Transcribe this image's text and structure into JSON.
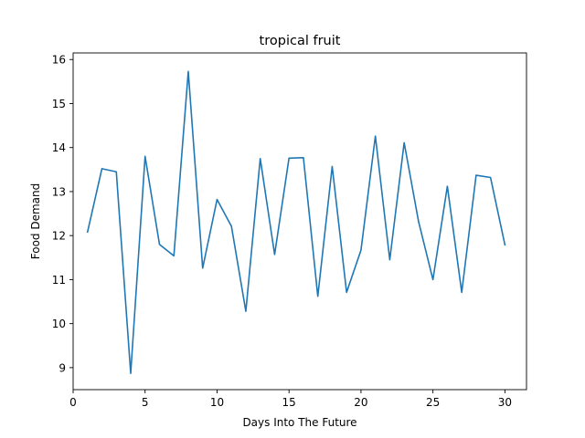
{
  "chart_data": {
    "type": "line",
    "title": "tropical fruit",
    "xlabel": "Days Into The Future",
    "ylabel": "Food Demand",
    "xlim": [
      0,
      31.5
    ],
    "ylim": [
      8.5,
      16.15
    ],
    "xticks": [
      0,
      5,
      10,
      15,
      20,
      25,
      30
    ],
    "yticks": [
      9,
      10,
      11,
      12,
      13,
      14,
      15,
      16
    ],
    "grid": false,
    "series": [
      {
        "color": "#1f77b4",
        "x": [
          1,
          2,
          3,
          4,
          5,
          6,
          7,
          8,
          9,
          10,
          11,
          12,
          13,
          14,
          15,
          16,
          17,
          18,
          19,
          20,
          21,
          22,
          23,
          24,
          25,
          26,
          27,
          28,
          29,
          30
        ],
        "values": [
          12.08,
          13.52,
          13.45,
          8.87,
          13.8,
          11.8,
          11.54,
          15.73,
          11.26,
          12.82,
          12.21,
          10.28,
          13.75,
          11.57,
          13.76,
          13.77,
          10.62,
          13.57,
          10.71,
          11.67,
          14.26,
          11.45,
          14.11,
          12.32,
          11.0,
          13.12,
          10.71,
          13.37,
          13.32,
          11.79
        ]
      }
    ]
  }
}
